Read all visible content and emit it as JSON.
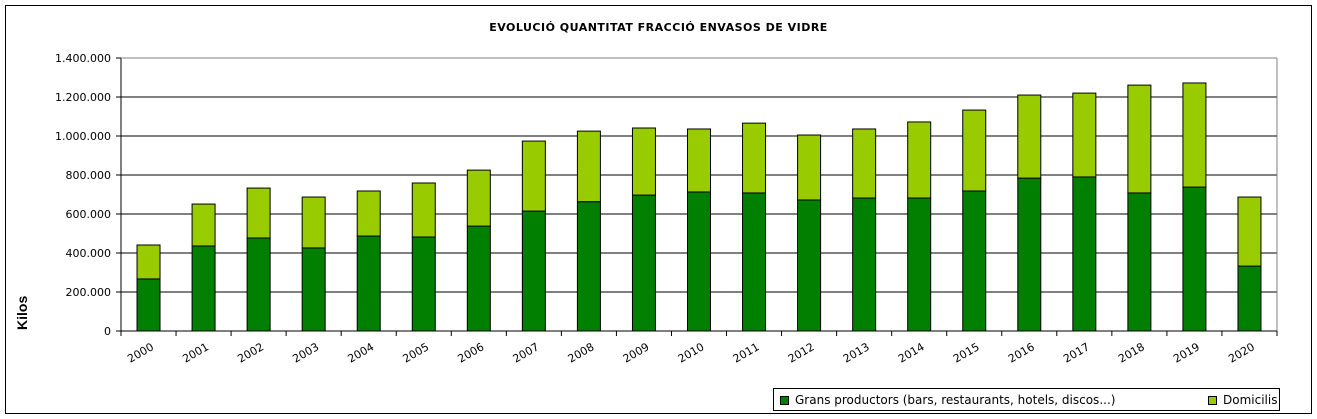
{
  "chart_data": {
    "type": "bar",
    "stacked": true,
    "title": "EVOLUCIÓ  QUANTITAT  FRACCIÓ  ENVASOS  DE  VIDRE",
    "xlabel": "",
    "ylabel": "Kilos",
    "ylim": [
      0,
      1400000
    ],
    "yticks": [
      0,
      200000,
      400000,
      600000,
      800000,
      1000000,
      1200000,
      1400000
    ],
    "ytick_labels": [
      "0",
      "200.000",
      "400.000",
      "600.000",
      "800.000",
      "1.000.000",
      "1.200.000",
      "1.400.000"
    ],
    "grid": true,
    "legend_position": "bottom-right",
    "categories": [
      "2000",
      "2001",
      "2002",
      "2003",
      "2004",
      "2005",
      "2006",
      "2007",
      "2008",
      "2009",
      "2010",
      "2011",
      "2012",
      "2013",
      "2014",
      "2015",
      "2016",
      "2017",
      "2018",
      "2019",
      "2020"
    ],
    "series": [
      {
        "name": "Grans productors (bars, restaurants, hotels, discos...)",
        "color": "#007f00",
        "values": [
          267000,
          436000,
          477000,
          426000,
          487000,
          482000,
          538000,
          615000,
          663000,
          697000,
          713000,
          708000,
          672000,
          682000,
          682000,
          718000,
          784000,
          790000,
          708000,
          738000,
          333000
        ]
      },
      {
        "name": "Domicilis",
        "color": "#99cc00",
        "values": [
          174000,
          215000,
          256000,
          261000,
          231000,
          277000,
          287000,
          359000,
          362000,
          344000,
          323000,
          358000,
          333000,
          354000,
          390000,
          415000,
          426000,
          430000,
          553000,
          534000,
          354000
        ]
      }
    ]
  }
}
